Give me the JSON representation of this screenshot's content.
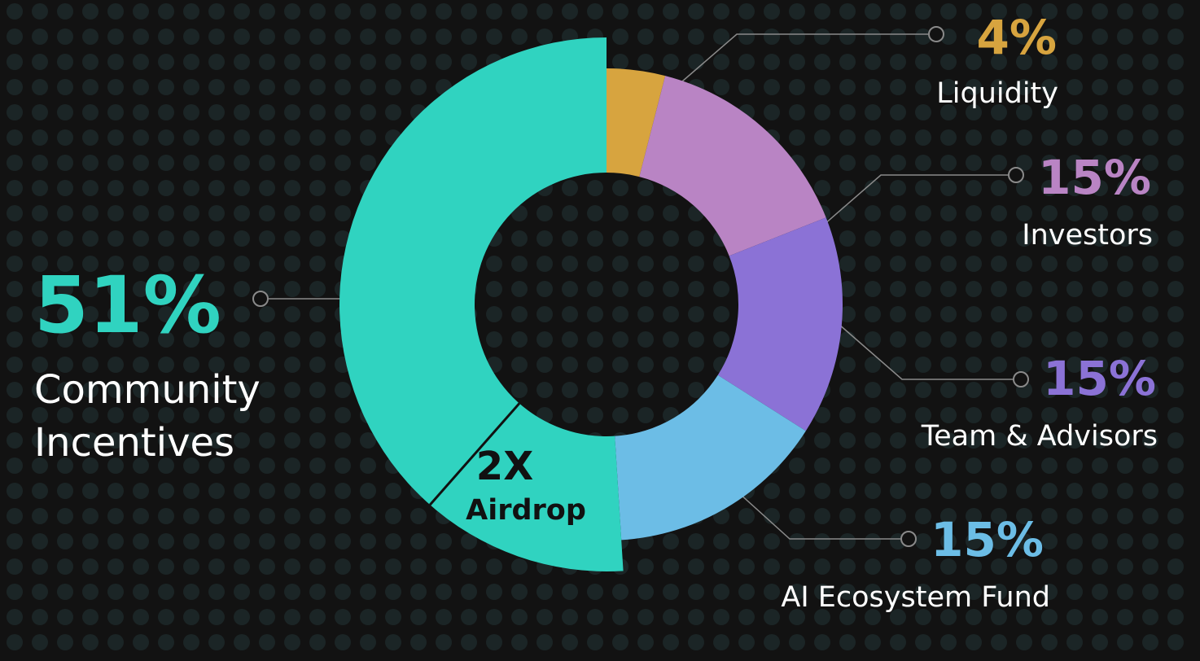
{
  "colors": {
    "background": "#121212",
    "dots": "#1b2526",
    "leader": "#8a8a8a",
    "center_text": "#111111"
  },
  "chart_data": {
    "type": "pie",
    "variant": "donut",
    "slices": [
      {
        "label": "Liquidity",
        "value": 4,
        "display": "4%",
        "color": "#d7a43f"
      },
      {
        "label": "Investors",
        "value": 15,
        "display": "15%",
        "color": "#b984c4"
      },
      {
        "label": "Team & Advisors",
        "value": 15,
        "display": "15%",
        "color": "#8b72d6"
      },
      {
        "label": "AI Ecosystem Fund",
        "value": 15,
        "display": "15%",
        "color": "#6cbde6"
      },
      {
        "label": "Community Incentives",
        "value": 51,
        "display": "51%",
        "color": "#30d3c0",
        "exploded": true,
        "sub_segment": {
          "label_big": "2X",
          "label_small": "Airdrop"
        }
      }
    ],
    "legend": "none"
  },
  "labels": {
    "community_line1": "Community",
    "community_line2": "Incentives"
  }
}
